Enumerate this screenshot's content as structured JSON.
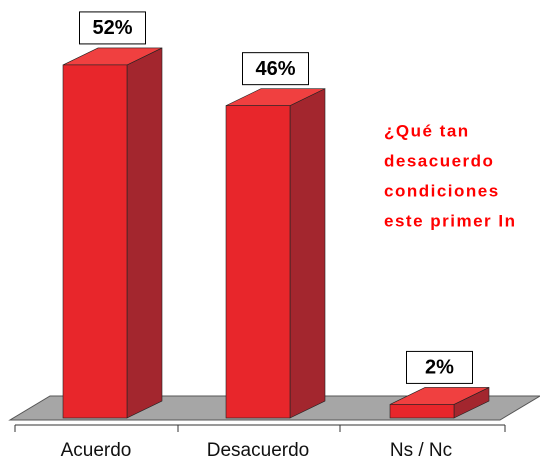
{
  "chart_data": {
    "type": "bar3d",
    "annotation_lines": [
      "¿Qué  tan",
      "desacuerdo",
      "condiciones",
      "este primer In"
    ],
    "categories": [
      "Acuerdo",
      "Desacuerdo",
      "Ns / Nc"
    ],
    "values": [
      52,
      46,
      2
    ],
    "value_labels": [
      "52%",
      "46%",
      "2%"
    ],
    "color": "#e8262b"
  }
}
